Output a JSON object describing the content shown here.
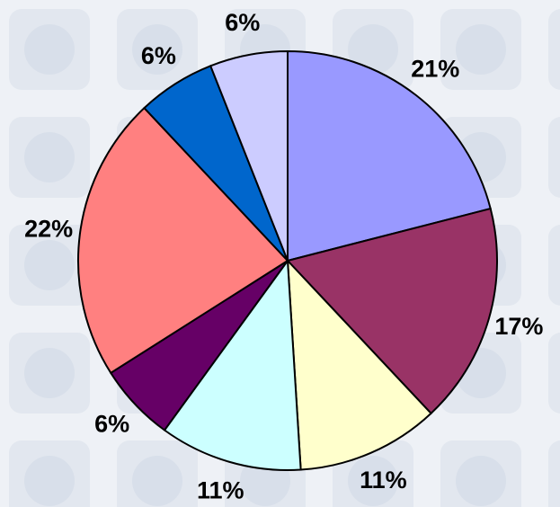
{
  "chart_data": {
    "type": "pie",
    "values": [
      21,
      17,
      11,
      11,
      6,
      22,
      6,
      6
    ],
    "value_labels": [
      "21%",
      "17%",
      "11%",
      "11%",
      "6%",
      "22%",
      "6%",
      "6%"
    ],
    "colors": [
      "#9999ff",
      "#993366",
      "#ffffcc",
      "#ccffff",
      "#660066",
      "#ff8080",
      "#0066cc",
      "#ccccff"
    ]
  }
}
